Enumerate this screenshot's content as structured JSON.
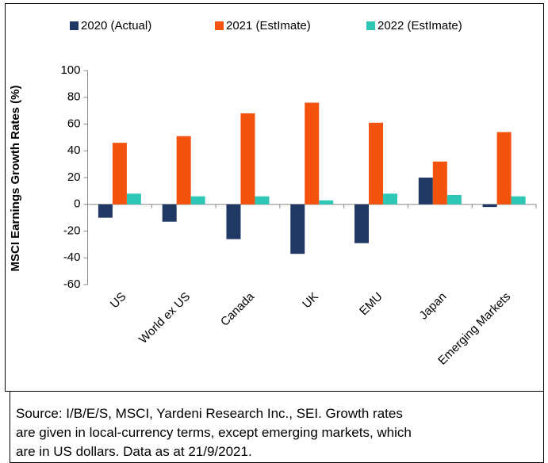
{
  "chart_data": {
    "type": "bar",
    "y_label": "MSCI Earnings Growth Rates (%)",
    "categories": [
      "US",
      "World ex US",
      "Canada",
      "UK",
      "EMU",
      "Japan",
      "Emerging Markets"
    ],
    "series": [
      {
        "name": "2020 (Actual)",
        "color": "#1f3864",
        "values": [
          -10,
          -13,
          -26,
          -37,
          -29,
          20,
          -2
        ]
      },
      {
        "name": "2021 (EstImate)",
        "color": "#f4520f",
        "values": [
          46,
          51,
          68,
          76,
          61,
          32,
          54
        ]
      },
      {
        "name": "2022 (EstImate)",
        "color": "#2ec7b5",
        "values": [
          8,
          6,
          6,
          3,
          8,
          7,
          6
        ]
      }
    ],
    "ylim": [
      -60,
      100
    ],
    "yticks": [
      -60,
      -40,
      -20,
      0,
      20,
      40,
      60,
      80,
      100
    ],
    "grid": false,
    "legend": "top",
    "source": [
      "Source: I/B/E/S, MSCI, Yardeni Research Inc., SEI. Growth rates",
      "are given in local-currency terms, except emerging markets, which",
      "are in US dollars. Data as at 21/9/2021."
    ]
  }
}
